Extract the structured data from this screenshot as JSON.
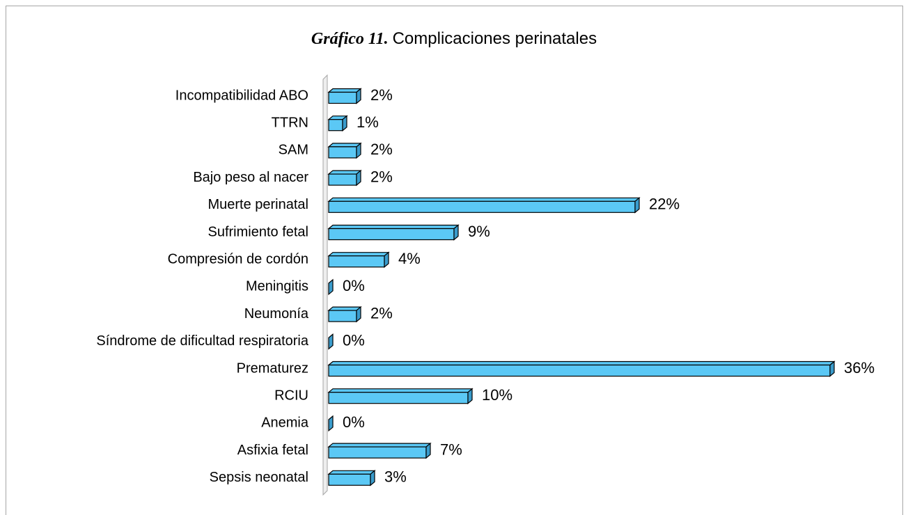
{
  "chart_data": {
    "type": "bar",
    "orientation": "horizontal",
    "title_label": "Gráfico 11.",
    "title": "Complicaciones perinatales",
    "categories": [
      "Incompatibilidad ABO",
      "TTRN",
      "SAM",
      "Bajo peso al nacer",
      "Muerte perinatal",
      "Sufrimiento fetal",
      "Compresión de cordón",
      "Meningitis",
      "Neumonía",
      "Síndrome de dificultad respiratoria",
      "Prematurez",
      "RCIU",
      "Anemia",
      "Asfixia fetal",
      "Sepsis neonatal"
    ],
    "values": [
      2,
      1,
      2,
      2,
      22,
      9,
      4,
      0,
      2,
      0,
      36,
      10,
      0,
      7,
      3
    ],
    "value_labels": [
      "2%",
      "1%",
      "2%",
      "2%",
      "22%",
      "9%",
      "4%",
      "0%",
      "2%",
      "0%",
      "36%",
      "10%",
      "0%",
      "7%",
      "3%"
    ],
    "color": "#5bc8f5"
  }
}
